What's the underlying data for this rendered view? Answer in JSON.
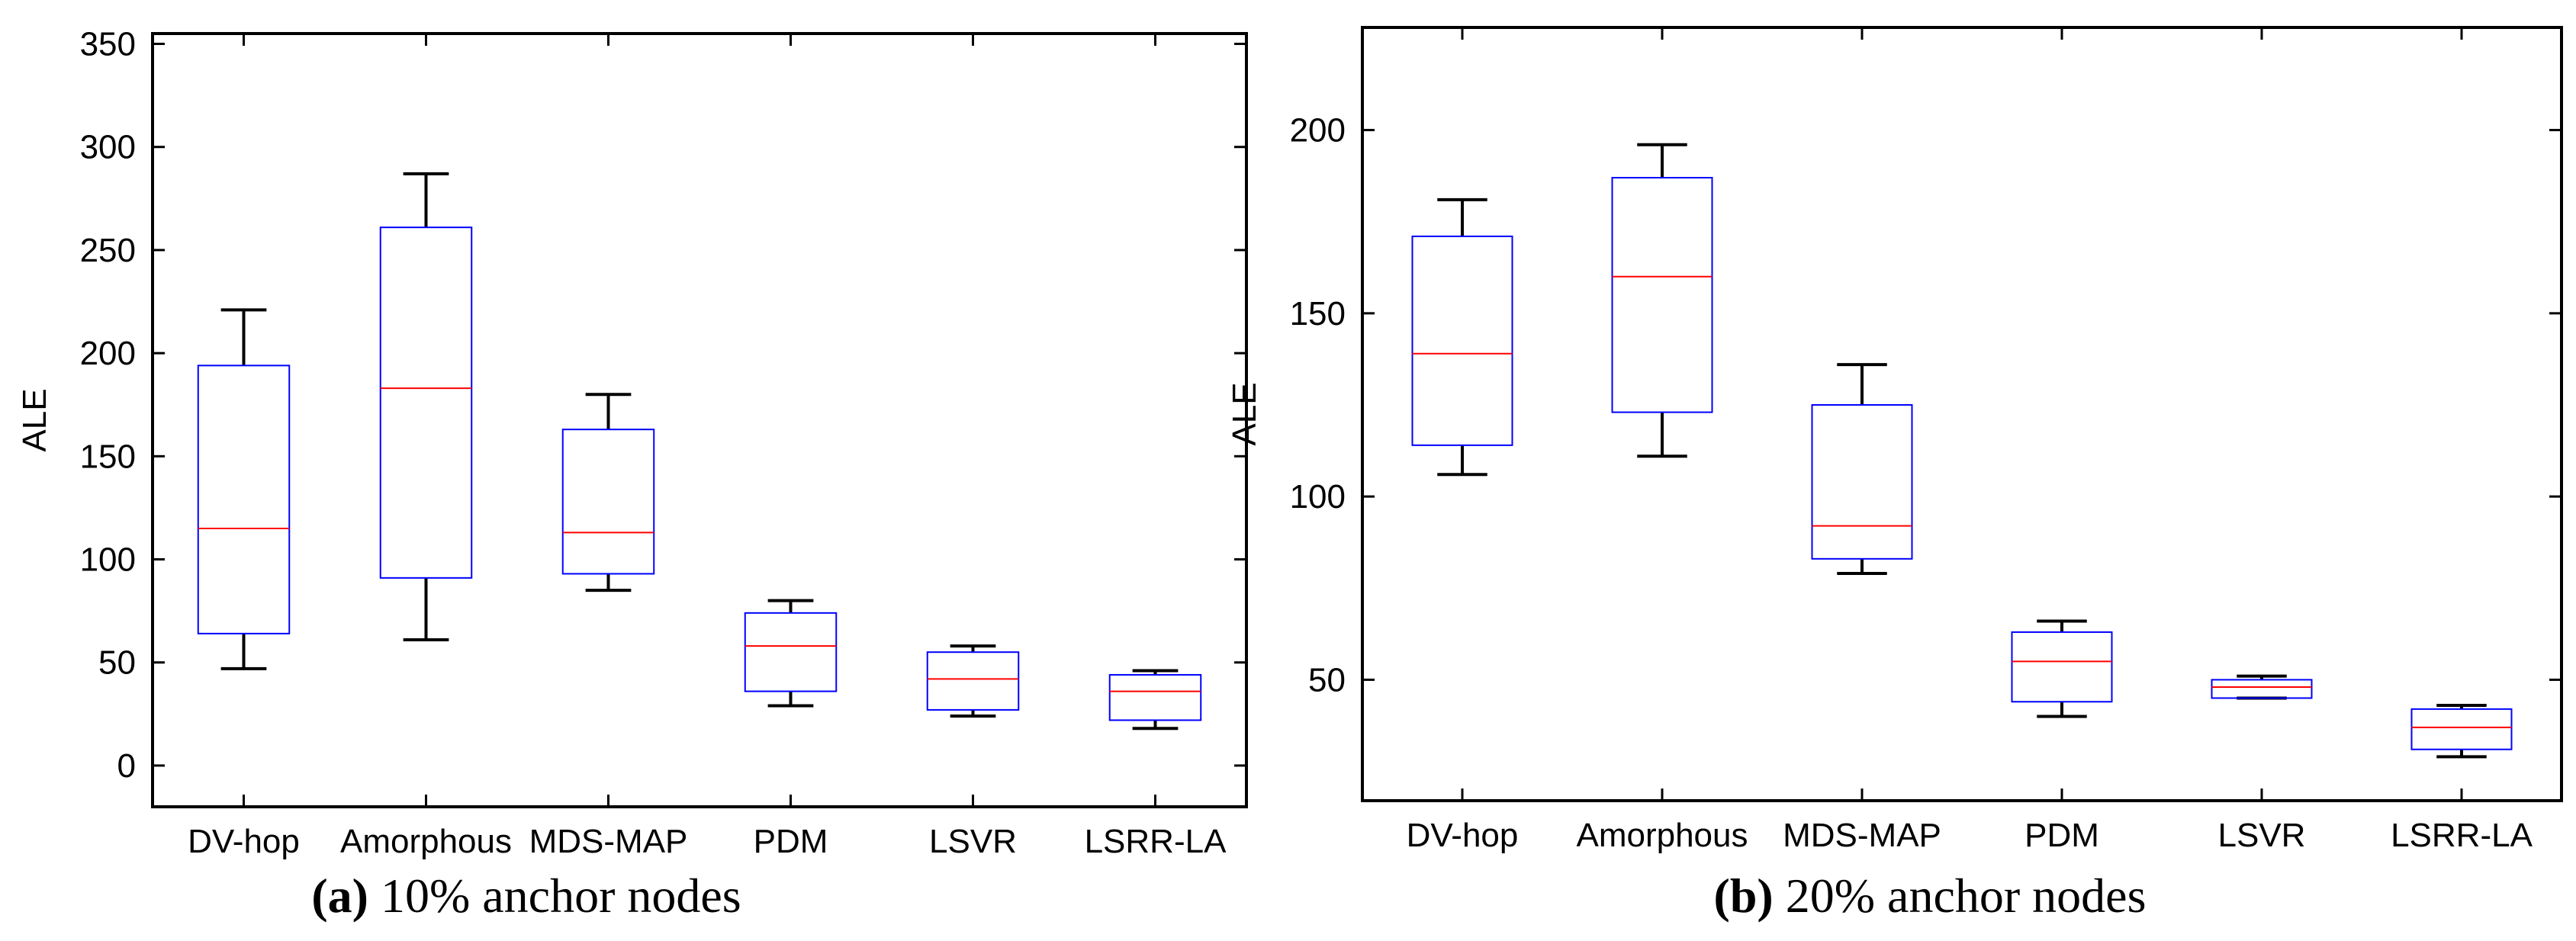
{
  "colors": {
    "box": "#0000ff",
    "median": "#ff0000",
    "whisker": "#000000",
    "axis": "#000000",
    "background": "#ffffff"
  },
  "chart_data": [
    {
      "type": "boxplot",
      "caption_label": "(a)",
      "caption_text": " 10% anchor nodes",
      "ylabel": "ALE",
      "xlabel": "",
      "ylim": [
        -20,
        355
      ],
      "yticks": [
        0,
        50,
        100,
        150,
        200,
        250,
        300,
        350
      ],
      "grid": false,
      "categories": [
        "DV-hop",
        "Amorphous",
        "MDS-MAP",
        "PDM",
        "LSVR",
        "LSRR-LA"
      ],
      "boxes": [
        {
          "min": 47,
          "q1": 64,
          "median": 115,
          "q3": 194,
          "max": 221
        },
        {
          "min": 61,
          "q1": 91,
          "median": 183,
          "q3": 261,
          "max": 287
        },
        {
          "min": 85,
          "q1": 93,
          "median": 113,
          "q3": 163,
          "max": 180
        },
        {
          "min": 29,
          "q1": 36,
          "median": 58,
          "q3": 74,
          "max": 80
        },
        {
          "min": 24,
          "q1": 27,
          "median": 42,
          "q3": 55,
          "max": 58
        },
        {
          "min": 18,
          "q1": 22,
          "median": 36,
          "q3": 44,
          "max": 46
        }
      ]
    },
    {
      "type": "boxplot",
      "caption_label": "(b)",
      "caption_text": " 20% anchor nodes",
      "ylabel": "ALE",
      "xlabel": "",
      "ylim": [
        17,
        228
      ],
      "yticks": [
        50,
        100,
        150,
        200
      ],
      "grid": false,
      "categories": [
        "DV-hop",
        "Amorphous",
        "MDS-MAP",
        "PDM",
        "LSVR",
        "LSRR-LA"
      ],
      "boxes": [
        {
          "min": 106,
          "q1": 114,
          "median": 139,
          "q3": 171,
          "max": 181
        },
        {
          "min": 111,
          "q1": 123,
          "median": 160,
          "q3": 187,
          "max": 196
        },
        {
          "min": 79,
          "q1": 83,
          "median": 92,
          "q3": 125,
          "max": 136
        },
        {
          "min": 40,
          "q1": 44,
          "median": 55,
          "q3": 63,
          "max": 66
        },
        {
          "min": 45,
          "q1": 45,
          "median": 48,
          "q3": 50,
          "max": 51
        },
        {
          "min": 29,
          "q1": 31,
          "median": 37,
          "q3": 42,
          "max": 43
        }
      ]
    }
  ]
}
